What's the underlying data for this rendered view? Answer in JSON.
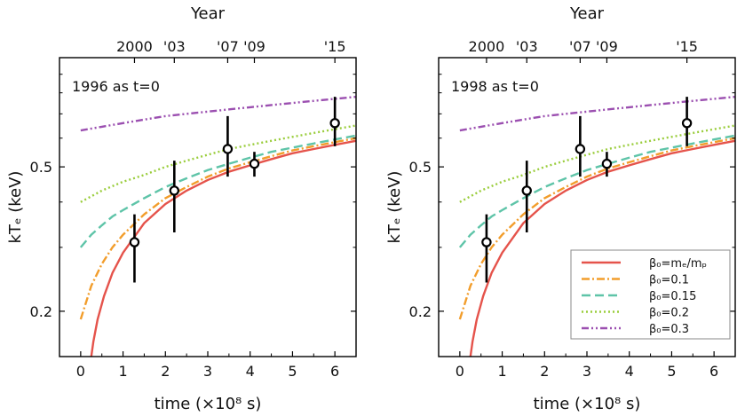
{
  "chart_data": [
    {
      "type": "line",
      "panel_label": "1996 as t=0",
      "xlabel": "time (×10⁸ s)",
      "ylabel": "kTₑ (keV)",
      "top_axis_label": "Year",
      "xlim": [
        -0.5,
        6.5
      ],
      "ylim": [
        0.15,
        1.0
      ],
      "yscale": "log",
      "x_ticks": [
        "0",
        "1",
        "2",
        "3",
        "4",
        "5",
        "6"
      ],
      "y_ticks": [
        {
          "value": 0.2,
          "label": "0.2"
        },
        {
          "value": 0.5,
          "label": "0.5"
        }
      ],
      "top_ticks": [
        {
          "label": "2000",
          "x": 1.27
        },
        {
          "label": "'03",
          "x": 2.21
        },
        {
          "label": "'07",
          "x": 3.47
        },
        {
          "label": "'09",
          "x": 4.1
        },
        {
          "label": "'15",
          "x": 6.0
        }
      ],
      "points": [
        {
          "x": 1.27,
          "y": 0.31,
          "ylow": 0.24,
          "yhigh": 0.37
        },
        {
          "x": 2.21,
          "y": 0.43,
          "ylow": 0.33,
          "yhigh": 0.52
        },
        {
          "x": 3.47,
          "y": 0.56,
          "ylow": 0.47,
          "yhigh": 0.69
        },
        {
          "x": 4.1,
          "y": 0.51,
          "ylow": 0.47,
          "yhigh": 0.55
        },
        {
          "x": 6.0,
          "y": 0.66,
          "ylow": 0.57,
          "yhigh": 0.78
        }
      ],
      "series": [
        {
          "name": "β₀=mₑ/mₚ",
          "color": "#e5534b",
          "style": "solid",
          "x": [
            0.25,
            0.3,
            0.4,
            0.55,
            0.75,
            1.0,
            1.5,
            2.0,
            2.5,
            3.0,
            3.5,
            4.0,
            4.5,
            5.0,
            5.5,
            6.0,
            6.5
          ],
          "y": [
            0.15,
            0.165,
            0.19,
            0.22,
            0.255,
            0.29,
            0.35,
            0.395,
            0.43,
            0.46,
            0.485,
            0.505,
            0.525,
            0.545,
            0.56,
            0.575,
            0.59
          ]
        },
        {
          "name": "β₀=0.1",
          "color": "#f29d2b",
          "style": "dashdot",
          "x": [
            0.0,
            0.25,
            0.5,
            0.75,
            1.0,
            1.5,
            2.0,
            2.5,
            3.0,
            3.5,
            4.0,
            4.5,
            5.0,
            5.5,
            6.0,
            6.5
          ],
          "y": [
            0.19,
            0.235,
            0.27,
            0.3,
            0.325,
            0.37,
            0.41,
            0.44,
            0.47,
            0.495,
            0.515,
            0.535,
            0.555,
            0.57,
            0.585,
            0.6
          ]
        },
        {
          "name": "β₀=0.15",
          "color": "#5ec4a8",
          "style": "dashed",
          "x": [
            0.0,
            0.25,
            0.5,
            0.75,
            1.0,
            1.5,
            2.0,
            2.5,
            3.0,
            3.5,
            4.0,
            4.5,
            5.0,
            5.5,
            6.0,
            6.5
          ],
          "y": [
            0.3,
            0.325,
            0.345,
            0.365,
            0.38,
            0.41,
            0.44,
            0.465,
            0.49,
            0.51,
            0.53,
            0.55,
            0.565,
            0.58,
            0.595,
            0.61
          ]
        },
        {
          "name": "β₀=0.2",
          "color": "#9acd3c",
          "style": "dotted",
          "x": [
            0.0,
            0.5,
            1.0,
            1.5,
            2.0,
            2.5,
            3.0,
            3.5,
            4.0,
            4.5,
            5.0,
            5.5,
            6.0,
            6.5
          ],
          "y": [
            0.4,
            0.43,
            0.455,
            0.475,
            0.5,
            0.52,
            0.54,
            0.56,
            0.575,
            0.59,
            0.605,
            0.62,
            0.635,
            0.65
          ]
        },
        {
          "name": "β₀=0.3",
          "color": "#9b4fb0",
          "style": "dashdotdot",
          "x": [
            0.0,
            0.5,
            1.0,
            1.5,
            2.0,
            2.5,
            3.0,
            3.5,
            4.0,
            4.5,
            5.0,
            5.5,
            6.0,
            6.5
          ],
          "y": [
            0.63,
            0.645,
            0.66,
            0.675,
            0.69,
            0.7,
            0.71,
            0.72,
            0.73,
            0.74,
            0.75,
            0.76,
            0.77,
            0.78
          ]
        }
      ]
    },
    {
      "type": "line",
      "panel_label": "1998 as t=0",
      "xlabel": "time (×10⁸ s)",
      "ylabel": "kTₑ (keV)",
      "top_axis_label": "Year",
      "xlim": [
        -0.5,
        6.5
      ],
      "ylim": [
        0.15,
        1.0
      ],
      "yscale": "log",
      "x_ticks": [
        "0",
        "1",
        "2",
        "3",
        "4",
        "5",
        "6"
      ],
      "y_ticks": [
        {
          "value": 0.2,
          "label": "0.2"
        },
        {
          "value": 0.5,
          "label": "0.5"
        }
      ],
      "top_ticks": [
        {
          "label": "2000",
          "x": 0.63
        },
        {
          "label": "'03",
          "x": 1.58
        },
        {
          "label": "'07",
          "x": 2.84
        },
        {
          "label": "'09",
          "x": 3.47
        },
        {
          "label": "'15",
          "x": 5.36
        }
      ],
      "legend": {
        "position": "bottom-right"
      },
      "points": [
        {
          "x": 0.63,
          "y": 0.31,
          "ylow": 0.24,
          "yhigh": 0.37
        },
        {
          "x": 1.58,
          "y": 0.43,
          "ylow": 0.33,
          "yhigh": 0.52
        },
        {
          "x": 2.84,
          "y": 0.56,
          "ylow": 0.47,
          "yhigh": 0.69
        },
        {
          "x": 3.47,
          "y": 0.51,
          "ylow": 0.47,
          "yhigh": 0.55
        },
        {
          "x": 5.36,
          "y": 0.66,
          "ylow": 0.57,
          "yhigh": 0.78
        }
      ],
      "series": [
        {
          "name": "β₀=mₑ/mₚ",
          "color": "#e5534b",
          "style": "solid",
          "x": [
            0.25,
            0.3,
            0.4,
            0.55,
            0.75,
            1.0,
            1.5,
            2.0,
            2.5,
            3.0,
            3.5,
            4.0,
            4.5,
            5.0,
            5.5,
            6.0,
            6.5
          ],
          "y": [
            0.15,
            0.165,
            0.19,
            0.22,
            0.255,
            0.29,
            0.35,
            0.395,
            0.43,
            0.46,
            0.485,
            0.505,
            0.525,
            0.545,
            0.56,
            0.575,
            0.59
          ]
        },
        {
          "name": "β₀=0.1",
          "color": "#f29d2b",
          "style": "dashdot",
          "x": [
            0.0,
            0.25,
            0.5,
            0.75,
            1.0,
            1.5,
            2.0,
            2.5,
            3.0,
            3.5,
            4.0,
            4.5,
            5.0,
            5.5,
            6.0,
            6.5
          ],
          "y": [
            0.19,
            0.235,
            0.27,
            0.3,
            0.325,
            0.37,
            0.41,
            0.44,
            0.47,
            0.495,
            0.515,
            0.535,
            0.555,
            0.57,
            0.585,
            0.6
          ]
        },
        {
          "name": "β₀=0.15",
          "color": "#5ec4a8",
          "style": "dashed",
          "x": [
            0.0,
            0.25,
            0.5,
            0.75,
            1.0,
            1.5,
            2.0,
            2.5,
            3.0,
            3.5,
            4.0,
            4.5,
            5.0,
            5.5,
            6.0,
            6.5
          ],
          "y": [
            0.3,
            0.325,
            0.345,
            0.365,
            0.38,
            0.41,
            0.44,
            0.465,
            0.49,
            0.51,
            0.53,
            0.55,
            0.565,
            0.58,
            0.595,
            0.61
          ]
        },
        {
          "name": "β₀=0.2",
          "color": "#9acd3c",
          "style": "dotted",
          "x": [
            0.0,
            0.5,
            1.0,
            1.5,
            2.0,
            2.5,
            3.0,
            3.5,
            4.0,
            4.5,
            5.0,
            5.5,
            6.0,
            6.5
          ],
          "y": [
            0.4,
            0.43,
            0.455,
            0.475,
            0.5,
            0.52,
            0.54,
            0.56,
            0.575,
            0.59,
            0.605,
            0.62,
            0.635,
            0.65
          ]
        },
        {
          "name": "β₀=0.3",
          "color": "#9b4fb0",
          "style": "dashdotdot",
          "x": [
            0.0,
            0.5,
            1.0,
            1.5,
            2.0,
            2.5,
            3.0,
            3.5,
            4.0,
            4.5,
            5.0,
            5.5,
            6.0,
            6.5
          ],
          "y": [
            0.63,
            0.645,
            0.66,
            0.675,
            0.69,
            0.7,
            0.71,
            0.72,
            0.73,
            0.74,
            0.75,
            0.76,
            0.77,
            0.78
          ]
        }
      ]
    }
  ]
}
